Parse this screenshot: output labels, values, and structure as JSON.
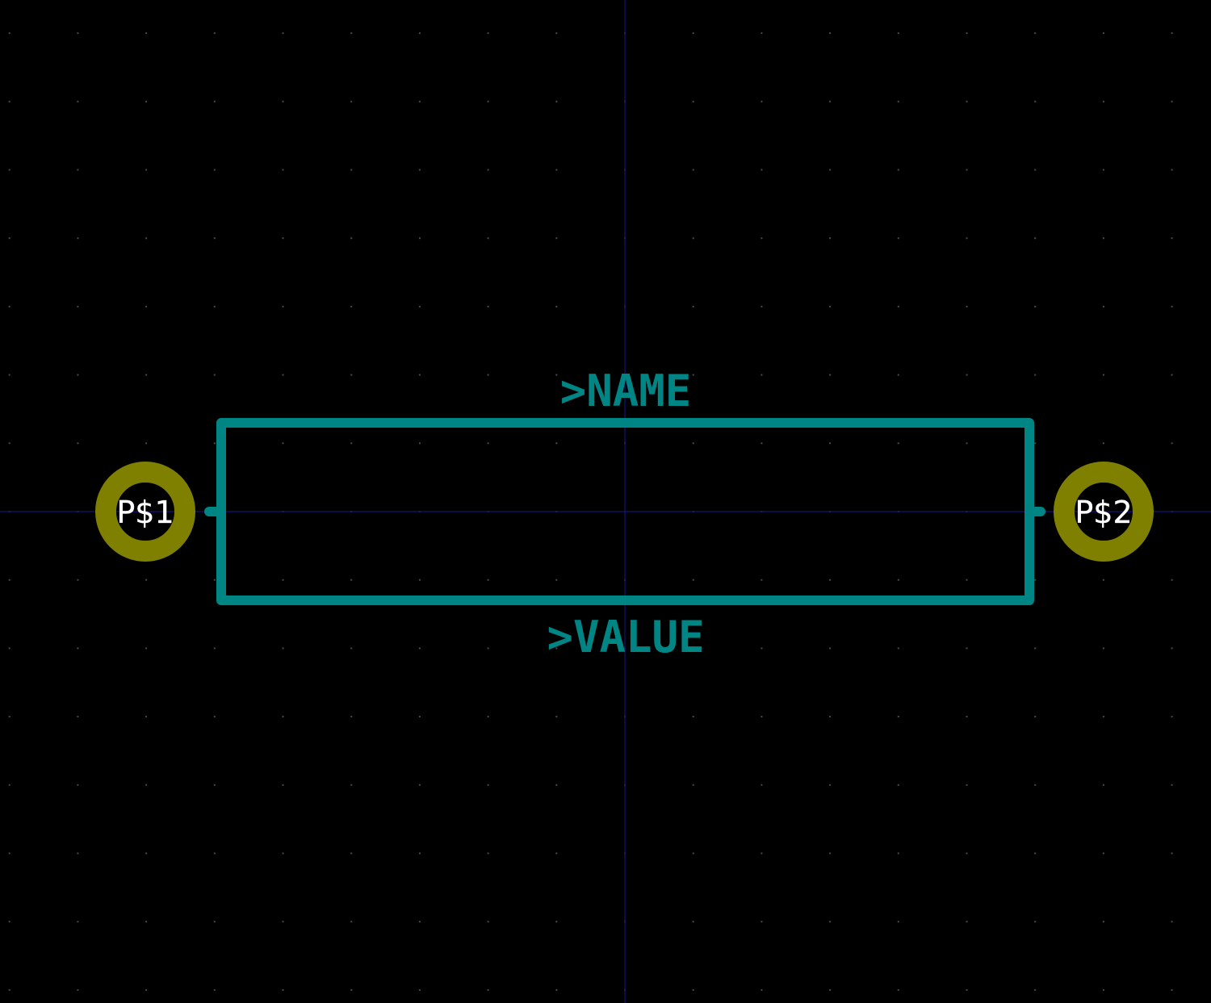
{
  "colors": {
    "background": "#000000",
    "grid_dot": "#4a4a4a",
    "axis": "#101060",
    "silkscreen": "#008585",
    "pad": "#808000",
    "pad_label": "#ffffff"
  },
  "labels": {
    "name": ">NAME",
    "value": ">VALUE"
  },
  "pads": [
    {
      "label": "P$1"
    },
    {
      "label": "P$2"
    }
  ]
}
